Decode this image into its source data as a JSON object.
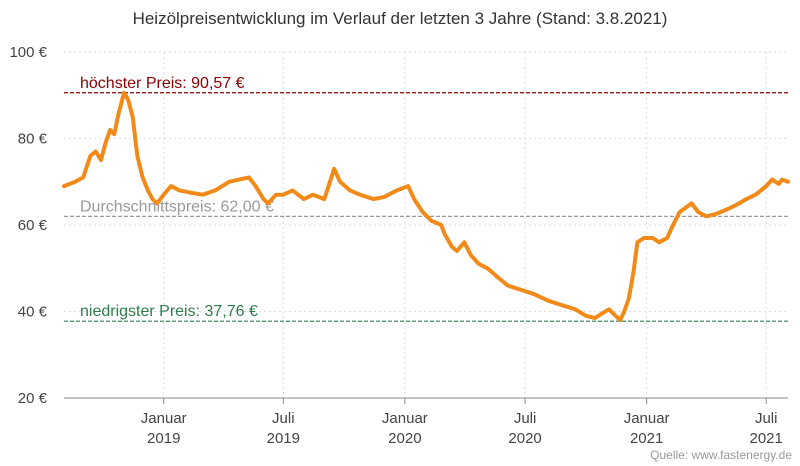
{
  "chart_data": {
    "type": "line",
    "title": "Heizölpreisentwicklung im Verlauf der letzten 3 Jahre (Stand: 3.8.2021)",
    "xlabel": "",
    "ylabel": "",
    "xlim": [
      "2018-08-03",
      "2021-08-03"
    ],
    "ylim": [
      20,
      100
    ],
    "grid": true,
    "y_ticks": [
      {
        "value": 20,
        "label": "20 €"
      },
      {
        "value": 40,
        "label": "40 €"
      },
      {
        "value": 60,
        "label": "60 €"
      },
      {
        "value": 80,
        "label": "80 €"
      },
      {
        "value": 100,
        "label": "100 €"
      }
    ],
    "x_ticks": [
      {
        "date": "2019-01-01",
        "month": "Januar",
        "year": "2019"
      },
      {
        "date": "2019-07-01",
        "month": "Juli",
        "year": "2019"
      },
      {
        "date": "2020-01-01",
        "month": "Januar",
        "year": "2020"
      },
      {
        "date": "2020-07-01",
        "month": "Juli",
        "year": "2020"
      },
      {
        "date": "2021-01-01",
        "month": "Januar",
        "year": "2021"
      },
      {
        "date": "2021-07-01",
        "month": "Juli",
        "year": "2021"
      }
    ],
    "reference_lines": [
      {
        "label": "höchster Preis: 90,57 €",
        "value": 90.57,
        "color": "#8b0000"
      },
      {
        "label": "Durchschnittspreis: 62,00 €",
        "value": 62.0,
        "color": "#999999"
      },
      {
        "label": "niedrigster Preis: 37,76 €",
        "value": 37.76,
        "color": "#2e7d4f"
      }
    ],
    "series": [
      {
        "color": "#f28a1a",
        "points": [
          [
            "2018-08-03",
            69
          ],
          [
            "2018-08-20",
            70
          ],
          [
            "2018-09-01",
            71
          ],
          [
            "2018-09-12",
            76
          ],
          [
            "2018-09-20",
            77
          ],
          [
            "2018-09-28",
            75
          ],
          [
            "2018-10-05",
            79
          ],
          [
            "2018-10-12",
            82
          ],
          [
            "2018-10-18",
            81
          ],
          [
            "2018-10-25",
            86
          ],
          [
            "2018-11-02",
            90.57
          ],
          [
            "2018-11-08",
            89
          ],
          [
            "2018-11-15",
            85
          ],
          [
            "2018-11-22",
            76
          ],
          [
            "2018-11-30",
            71
          ],
          [
            "2018-12-08",
            68
          ],
          [
            "2018-12-15",
            66
          ],
          [
            "2018-12-22",
            65
          ],
          [
            "2019-01-01",
            67
          ],
          [
            "2019-01-12",
            69
          ],
          [
            "2019-01-25",
            68
          ],
          [
            "2019-02-10",
            67.5
          ],
          [
            "2019-03-01",
            67
          ],
          [
            "2019-03-20",
            68
          ],
          [
            "2019-04-10",
            70
          ],
          [
            "2019-04-25",
            70.5
          ],
          [
            "2019-05-10",
            71
          ],
          [
            "2019-05-20",
            69
          ],
          [
            "2019-06-01",
            66
          ],
          [
            "2019-06-08",
            65
          ],
          [
            "2019-06-20",
            67
          ],
          [
            "2019-07-01",
            67
          ],
          [
            "2019-07-15",
            68
          ],
          [
            "2019-08-01",
            66
          ],
          [
            "2019-08-15",
            67
          ],
          [
            "2019-09-01",
            66
          ],
          [
            "2019-09-16",
            73
          ],
          [
            "2019-09-25",
            70
          ],
          [
            "2019-10-10",
            68
          ],
          [
            "2019-10-25",
            67
          ],
          [
            "2019-11-15",
            66
          ],
          [
            "2019-12-01",
            66.5
          ],
          [
            "2019-12-20",
            68
          ],
          [
            "2020-01-06",
            69
          ],
          [
            "2020-01-15",
            66
          ],
          [
            "2020-01-28",
            63
          ],
          [
            "2020-02-10",
            61
          ],
          [
            "2020-02-25",
            60
          ],
          [
            "2020-03-01",
            58
          ],
          [
            "2020-03-12",
            55
          ],
          [
            "2020-03-20",
            54
          ],
          [
            "2020-03-31",
            56
          ],
          [
            "2020-04-10",
            53
          ],
          [
            "2020-04-22",
            51
          ],
          [
            "2020-05-05",
            50
          ],
          [
            "2020-05-20",
            48
          ],
          [
            "2020-06-05",
            46
          ],
          [
            "2020-06-25",
            45
          ],
          [
            "2020-07-15",
            44
          ],
          [
            "2020-08-05",
            42.5
          ],
          [
            "2020-08-25",
            41.5
          ],
          [
            "2020-09-15",
            40.5
          ],
          [
            "2020-10-01",
            39
          ],
          [
            "2020-10-15",
            38.5
          ],
          [
            "2020-10-25",
            39.5
          ],
          [
            "2020-11-05",
            40.5
          ],
          [
            "2020-11-15",
            39
          ],
          [
            "2020-11-22",
            38
          ],
          [
            "2020-11-28",
            40
          ],
          [
            "2020-12-05",
            43
          ],
          [
            "2020-12-12",
            49
          ],
          [
            "2020-12-18",
            56
          ],
          [
            "2020-12-28",
            57
          ],
          [
            "2021-01-10",
            57
          ],
          [
            "2021-01-20",
            56
          ],
          [
            "2021-02-01",
            57
          ],
          [
            "2021-02-10",
            60
          ],
          [
            "2021-02-20",
            63
          ],
          [
            "2021-03-01",
            64
          ],
          [
            "2021-03-10",
            65
          ],
          [
            "2021-03-20",
            63
          ],
          [
            "2021-04-01",
            62
          ],
          [
            "2021-04-15",
            62.5
          ],
          [
            "2021-05-01",
            63.5
          ],
          [
            "2021-05-15",
            64.5
          ],
          [
            "2021-06-01",
            66
          ],
          [
            "2021-06-15",
            67
          ],
          [
            "2021-07-01",
            69
          ],
          [
            "2021-07-10",
            70.5
          ],
          [
            "2021-07-20",
            69.5
          ],
          [
            "2021-07-25",
            70.5
          ],
          [
            "2021-08-03",
            70
          ]
        ]
      }
    ],
    "source": "Quelle: www.fastenergy.de"
  }
}
